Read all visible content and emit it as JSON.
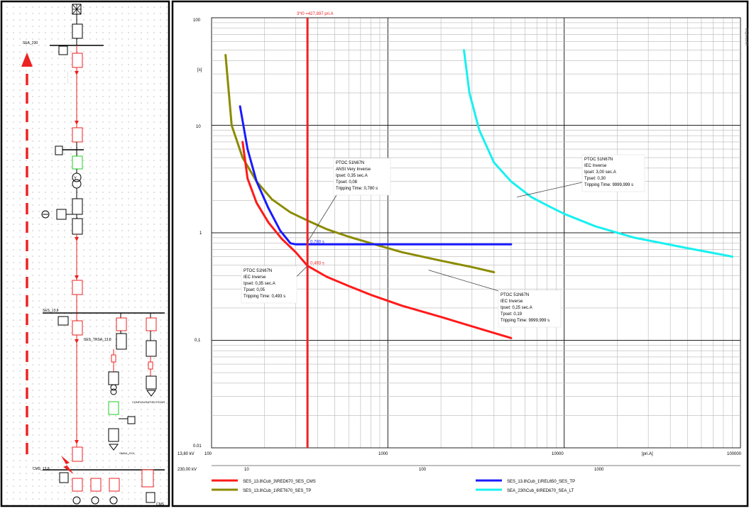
{
  "single_line": {
    "bus_labels": [
      "SEA_230",
      "SES_13,8",
      "CMS_13,8"
    ],
    "tags": [
      {
        "text": "SES_TRSA_13,8"
      },
      {
        "text": "CONFIGURATOR ESTAR"
      },
      {
        "text": "SMAA_XXX"
      },
      {
        "text": "CMS"
      }
    ]
  },
  "chart_data": {
    "type": "line",
    "xscale": "log",
    "yscale": "log",
    "x_ref_kv": "13,80 kV",
    "x2_ref_kv": "230,00 kV",
    "x_unit": "[pri.A]",
    "y_unit": "[s]",
    "xlim": [
      100,
      100000
    ],
    "ylim": [
      0.01,
      100
    ],
    "x_ticks": [
      "100",
      "1000",
      "10000",
      "100000"
    ],
    "x2_ticks": [
      "10",
      "100",
      "1000"
    ],
    "y_ticks": [
      "100",
      "10",
      "1",
      "0,1",
      "0.01"
    ],
    "fault_line": {
      "x": 350,
      "label": "3*I0 =427,897 pri.A"
    },
    "point_labels": [
      {
        "x": 350,
        "y": 0.78,
        "text": "0,780 s"
      },
      {
        "x": 350,
        "y": 0.493,
        "text": "0,493 s"
      }
    ],
    "series": [
      {
        "name": "SES_13.8\\Cub_3\\RED670_SES_CMS",
        "color": "#ff1a1a",
        "points": [
          [
            150,
            7.0
          ],
          [
            160,
            3.2
          ],
          [
            180,
            1.9
          ],
          [
            210,
            1.25
          ],
          [
            250,
            0.88
          ],
          [
            300,
            0.66
          ],
          [
            350,
            0.493
          ],
          [
            450,
            0.39
          ],
          [
            600,
            0.32
          ],
          [
            800,
            0.265
          ],
          [
            1200,
            0.21
          ],
          [
            2000,
            0.165
          ],
          [
            3500,
            0.125
          ],
          [
            5000,
            0.105
          ]
        ]
      },
      {
        "name": "SES_13.8\\Cub_1\\REL650_SES_TP",
        "color": "#1a1aff",
        "points": [
          [
            145,
            15.0
          ],
          [
            160,
            6.0
          ],
          [
            180,
            3.0
          ],
          [
            210,
            1.7
          ],
          [
            245,
            1.05
          ],
          [
            280,
            0.8
          ],
          [
            300,
            0.78
          ],
          [
            5000,
            0.78
          ]
        ]
      },
      {
        "name": "SES_13.8\\Cub_1\\RET670_SES_TP",
        "color": "#8b8b00",
        "points": [
          [
            120,
            45.0
          ],
          [
            130,
            10.0
          ],
          [
            150,
            5.0
          ],
          [
            180,
            3.0
          ],
          [
            220,
            2.05
          ],
          [
            280,
            1.55
          ],
          [
            350,
            1.3
          ],
          [
            450,
            1.08
          ],
          [
            600,
            0.92
          ],
          [
            800,
            0.8
          ],
          [
            1200,
            0.66
          ],
          [
            2000,
            0.55
          ],
          [
            3000,
            0.48
          ],
          [
            4000,
            0.43
          ]
        ]
      },
      {
        "name": "SEA_230\\Cub_6\\RED670_SEA_LT",
        "color": "#19f0f0",
        "points": [
          [
            2700,
            50.0
          ],
          [
            2900,
            20.0
          ],
          [
            3300,
            9.0
          ],
          [
            4000,
            4.5
          ],
          [
            5000,
            3.0
          ],
          [
            6500,
            2.15
          ],
          [
            8000,
            1.8
          ],
          [
            10000,
            1.5
          ],
          [
            15000,
            1.15
          ],
          [
            25000,
            0.9
          ],
          [
            50000,
            0.72
          ],
          [
            90000,
            0.6
          ]
        ]
      }
    ],
    "annotations": [
      {
        "lines": [
          "PTOC 51N67N",
          "ANSI Very Inverse",
          "Ipset: 0,35 sec.A",
          "Tpset: 0,08",
          "Tripping Time: 0,780 s"
        ],
        "pointer": [
          350,
          0.82
        ]
      },
      {
        "lines": [
          "PTOC 51N67N",
          "IEC Inverse",
          "Ipset: 0,35 sec.A",
          "Tpset: 0,05",
          "Tripping Time: 0,493 s"
        ],
        "pointer": [
          350,
          0.493
        ]
      },
      {
        "lines": [
          "PTOC 51N67N",
          "IEC Inverse",
          "Ipset: 0,25 sec.A",
          "Tpset: 0,19",
          "Tripping Time: 9999,999 s"
        ],
        "pointer": [
          1700,
          0.45
        ]
      },
      {
        "lines": [
          "PTOC 51N67N",
          "IEC Inverse",
          "Ipset: 3,00 sec.A",
          "Tpset: 0,30",
          "Tripping Time: 9999,999 s"
        ],
        "pointer": [
          5400,
          2.15
        ]
      }
    ],
    "corner_watermark": "DIgSILENT"
  }
}
